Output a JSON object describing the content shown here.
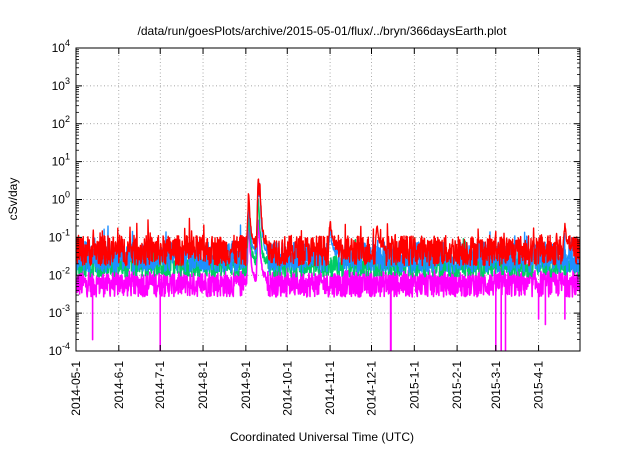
{
  "chart_data": {
    "type": "line",
    "title": "/data/run/goesPlots/archive/2015-05-01/flux/../bryn/366daysEarth.plot",
    "xlabel": "Coordinated Universal Time (UTC)",
    "ylabel": "cSv/day",
    "yscale": "log",
    "ylim": [
      0.0001,
      10000
    ],
    "xlim": [
      "2014-05-01",
      "2015-05-01"
    ],
    "y_ticks": [
      {
        "base": "10",
        "exp": "-4",
        "value": 0.0001
      },
      {
        "base": "10",
        "exp": "-3",
        "value": 0.001
      },
      {
        "base": "10",
        "exp": "-2",
        "value": 0.01
      },
      {
        "base": "10",
        "exp": "-1",
        "value": 0.1
      },
      {
        "base": "10",
        "exp": "0",
        "value": 1
      },
      {
        "base": "10",
        "exp": "1",
        "value": 10
      },
      {
        "base": "10",
        "exp": "2",
        "value": 100
      },
      {
        "base": "10",
        "exp": "3",
        "value": 1000
      },
      {
        "base": "10",
        "exp": "4",
        "value": 10000
      }
    ],
    "x_ticks": [
      "2014-05-1",
      "2014-6-1",
      "2014-7-1",
      "2014-8-1",
      "2014-9-1",
      "2014-10-1",
      "2014-11-1",
      "2014-12-1",
      "2015-1-1",
      "2015-2-1",
      "2015-3-1",
      "2015-4-1"
    ],
    "grid": true,
    "series_colors": [
      "#ff0000",
      "#1f8fff",
      "#00cc66",
      "#ff00ff"
    ],
    "series": [
      {
        "color": "#ff0000",
        "baseline": 0.045,
        "spread": 0.4,
        "events": [
          {
            "x": "2014-09-10",
            "y": 5.0
          },
          {
            "x": "2014-09-11",
            "y": 3.5
          },
          {
            "x": "2014-09-03",
            "y": 1.5
          },
          {
            "x": "2014-11-01",
            "y": 0.3
          },
          {
            "x": "2014-12-05",
            "y": 0.25
          },
          {
            "x": "2015-04-20",
            "y": 0.2
          }
        ]
      },
      {
        "color": "#1f8fff",
        "baseline": 0.03,
        "spread": 0.4,
        "events": [
          {
            "x": "2014-09-10",
            "y": 4.0
          },
          {
            "x": "2014-09-11",
            "y": 2.5
          },
          {
            "x": "2014-09-03",
            "y": 1.0
          },
          {
            "x": "2014-11-01",
            "y": 0.2
          }
        ]
      },
      {
        "color": "#00cc66",
        "baseline": 0.018,
        "spread": 0.3,
        "events": [
          {
            "x": "2014-09-10",
            "y": 1.5
          },
          {
            "x": "2014-09-03",
            "y": 0.5
          }
        ]
      },
      {
        "color": "#ff00ff",
        "baseline": 0.006,
        "spread": 0.35,
        "events": [
          {
            "x": "2014-09-03",
            "y": 0.3
          },
          {
            "x": "2014-09-10",
            "y": 0.4
          }
        ],
        "dips": [
          {
            "x": "2014-05-13",
            "y": 0.0002
          },
          {
            "x": "2014-07-01",
            "y": 0.0001
          },
          {
            "x": "2014-12-15",
            "y": 0.0001
          },
          {
            "x": "2015-03-01",
            "y": 0.0001
          },
          {
            "x": "2015-03-05",
            "y": 0.0001
          },
          {
            "x": "2015-03-08",
            "y": 0.0001
          },
          {
            "x": "2015-04-01",
            "y": 0.0007
          },
          {
            "x": "2015-04-06",
            "y": 0.0005
          },
          {
            "x": "2015-04-20",
            "y": 0.0007
          }
        ]
      }
    ]
  }
}
